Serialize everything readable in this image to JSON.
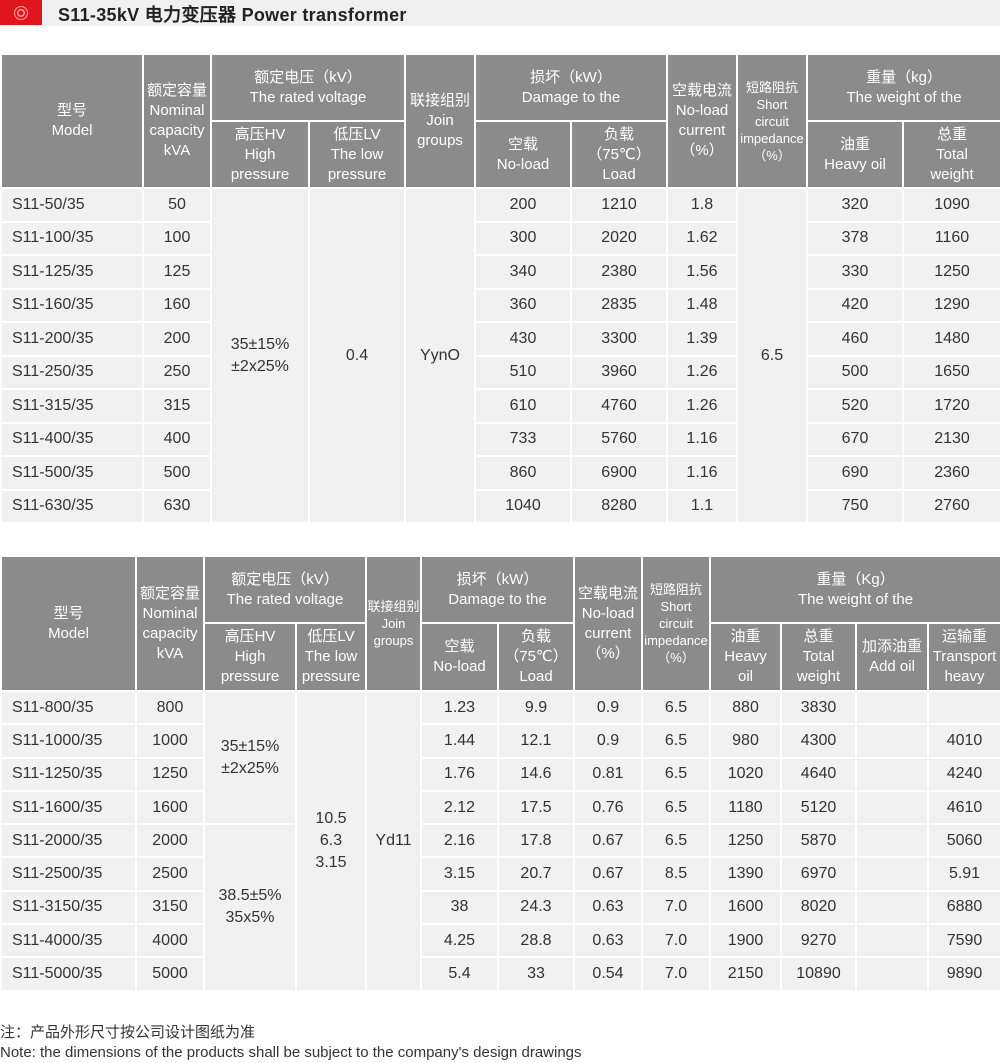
{
  "header": {
    "title": "S11-35kV 电力变压器 Power transformer",
    "icon": "target-circle-icon",
    "accent": "#e0161c"
  },
  "table1": {
    "headers": {
      "model": "型号\nModel",
      "capacity": "额定容量\nNominal\ncapacity\nkVA",
      "voltage": "额定电压（kV）\nThe rated voltage",
      "hv": "高压HV\nHigh\npressure",
      "lv": "低压LV\nThe low\npressure",
      "join": "联接组别\nJoin\ngroups",
      "damage": "损坏（kW）\nDamage to the",
      "noload": "空载\nNo-load",
      "load": "负载\n（75℃）\nLoad",
      "current": "空载电流\nNo-load\ncurrent\n（%）",
      "impedance": "短路阻抗\nShort\ncircuit\nimpedance\n（%）",
      "weight": "重量（kg）\nThe weight of the",
      "oil": "油重\nHeavy oil",
      "total": "总重\nTotal\nweight"
    },
    "merged": {
      "hv": "35±15%\n±2x25%",
      "lv": "0.4",
      "join": "YynO",
      "impedance": "6.5"
    },
    "rows": [
      [
        "S11-50/35",
        "50",
        "200",
        "1210",
        "1.8",
        "320",
        "1090"
      ],
      [
        "S11-100/35",
        "100",
        "300",
        "2020",
        "1.62",
        "378",
        "1160"
      ],
      [
        "S11-125/35",
        "125",
        "340",
        "2380",
        "1.56",
        "330",
        "1250"
      ],
      [
        "S11-160/35",
        "160",
        "360",
        "2835",
        "1.48",
        "420",
        "1290"
      ],
      [
        "S11-200/35",
        "200",
        "430",
        "3300",
        "1.39",
        "460",
        "1480"
      ],
      [
        "S11-250/35",
        "250",
        "510",
        "3960",
        "1.26",
        "500",
        "1650"
      ],
      [
        "S11-315/35",
        "315",
        "610",
        "4760",
        "1.26",
        "520",
        "1720"
      ],
      [
        "S11-400/35",
        "400",
        "733",
        "5760",
        "1.16",
        "670",
        "2130"
      ],
      [
        "S11-500/35",
        "500",
        "860",
        "6900",
        "1.16",
        "690",
        "2360"
      ],
      [
        "S11-630/35",
        "630",
        "1040",
        "8280",
        "1.1",
        "750",
        "2760"
      ]
    ]
  },
  "table2": {
    "headers": {
      "model": "型号\nModel",
      "capacity": "额定容量\nNominal\ncapacity\nkVA",
      "voltage": "额定电压（kV）\nThe rated voltage",
      "hv": "高压HV\nHigh\npressure",
      "lv": "低压LV\nThe low\npressure",
      "join": "联接组别\nJoin\ngroups",
      "damage": "损坏（kW）\nDamage to the",
      "noload": "空载\nNo-load",
      "load": "负载\n（75℃）\nLoad",
      "current": "空载电流\nNo-load\ncurrent\n（%）",
      "impedance": "短路阻抗\nShort\ncircuit\nimpedance\n（%）",
      "weight": "重量（Kg）\nThe weight of the",
      "oil": "油重\nHeavy\noil",
      "total": "总重\nTotal\nweight",
      "addoil": "加添油重\nAdd oil",
      "transport": "运输重\nTransport\nheavy"
    },
    "merged": {
      "hv_a": "35±15%\n±2x25%",
      "hv_b": "38.5±5%\n35x5%",
      "lv": "10.5\n6.3\n3.15",
      "join": "Yd11"
    },
    "rows": [
      [
        "S11-800/35",
        "800",
        "1.23",
        "9.9",
        "0.9",
        "6.5",
        "880",
        "3830",
        "",
        ""
      ],
      [
        "S11-1000/35",
        "1000",
        "1.44",
        "12.1",
        "0.9",
        "6.5",
        "980",
        "4300",
        "",
        "4010"
      ],
      [
        "S11-1250/35",
        "1250",
        "1.76",
        "14.6",
        "0.81",
        "6.5",
        "1020",
        "4640",
        "",
        "4240"
      ],
      [
        "S11-1600/35",
        "1600",
        "2.12",
        "17.5",
        "0.76",
        "6.5",
        "1180",
        "5120",
        "",
        "4610"
      ],
      [
        "S11-2000/35",
        "2000",
        "2.16",
        "17.8",
        "0.67",
        "6.5",
        "1250",
        "5870",
        "",
        "5060"
      ],
      [
        "S11-2500/35",
        "2500",
        "3.15",
        "20.7",
        "0.67",
        "8.5",
        "1390",
        "6970",
        "",
        "5.91"
      ],
      [
        "S11-3150/35",
        "3150",
        "38",
        "24.3",
        "0.63",
        "7.0",
        "1600",
        "8020",
        "",
        "6880"
      ],
      [
        "S11-4000/35",
        "4000",
        "4.25",
        "28.8",
        "0.63",
        "7.0",
        "1900",
        "9270",
        "",
        "7590"
      ],
      [
        "S11-5000/35",
        "5000",
        "5.4",
        "33",
        "0.54",
        "7.0",
        "2150",
        "10890",
        "",
        "9890"
      ]
    ]
  },
  "notes": {
    "zh": "注：产品外形尺寸按公司设计图纸为准",
    "en": "Note: the dimensions of the products shall be subject to the company's design drawings"
  }
}
